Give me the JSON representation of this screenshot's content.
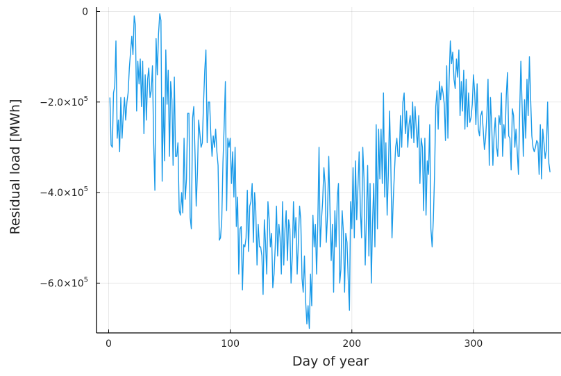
{
  "chart_data": {
    "type": "line",
    "xlabel": "Day of year",
    "ylabel": "Residual load [MWh]",
    "xlim": [
      -10,
      372
    ],
    "ylim": [
      -710000,
      10000
    ],
    "x_ticks": [
      0,
      100,
      200,
      300
    ],
    "x_tick_labels": [
      "0",
      "100",
      "200",
      "300"
    ],
    "y_ticks": [
      0,
      -200000,
      -400000,
      -600000
    ],
    "y_tick_labels": [
      {
        "base": "0",
        "exp": ""
      },
      {
        "base": "−2.0×10",
        "exp": "5"
      },
      {
        "base": "−4.0×10",
        "exp": "5"
      },
      {
        "base": "−6.0×10",
        "exp": "5"
      }
    ],
    "grid": true,
    "legend": "none",
    "series": [
      {
        "color": "#1a9ae8",
        "x_start": 1,
        "x_step": 1,
        "values": [
          -190000,
          -295000,
          -300000,
          -180000,
          -165000,
          -65000,
          -280000,
          -240000,
          -310000,
          -190000,
          -280000,
          -230000,
          -190000,
          -240000,
          -200000,
          -180000,
          -125000,
          -90000,
          -55000,
          -95000,
          -10000,
          -30000,
          -220000,
          -110000,
          -160000,
          -105000,
          -210000,
          -110000,
          -270000,
          -140000,
          -240000,
          -150000,
          -125000,
          -190000,
          -175000,
          -120000,
          -290000,
          -395000,
          -60000,
          -140000,
          -50000,
          -5000,
          -20000,
          -375000,
          -190000,
          -330000,
          -85000,
          -205000,
          -130000,
          -320000,
          -155000,
          -195000,
          -340000,
          -145000,
          -320000,
          -320000,
          -290000,
          -440000,
          -450000,
          -400000,
          -445000,
          -280000,
          -415000,
          -370000,
          -225000,
          -225000,
          -455000,
          -480000,
          -235000,
          -210000,
          -315000,
          -430000,
          -355000,
          -240000,
          -270000,
          -300000,
          -290000,
          -205000,
          -130000,
          -85000,
          -290000,
          -200000,
          -200000,
          -270000,
          -320000,
          -275000,
          -300000,
          -260000,
          -310000,
          -340000,
          -505000,
          -500000,
          -460000,
          -335000,
          -250000,
          -155000,
          -440000,
          -280000,
          -300000,
          -280000,
          -380000,
          -310000,
          -410000,
          -300000,
          -475000,
          -410000,
          -580000,
          -480000,
          -475000,
          -615000,
          -515000,
          -520000,
          -500000,
          -395000,
          -530000,
          -430000,
          -420000,
          -380000,
          -510000,
          -400000,
          -440000,
          -560000,
          -470000,
          -520000,
          -520000,
          -540000,
          -625000,
          -460000,
          -510000,
          -580000,
          -420000,
          -460000,
          -520000,
          -490000,
          -610000,
          -580000,
          -520000,
          -430000,
          -540000,
          -470000,
          -500000,
          -580000,
          -420000,
          -560000,
          -480000,
          -440000,
          -550000,
          -460000,
          -480000,
          -600000,
          -540000,
          -420000,
          -500000,
          -455000,
          -580000,
          -510000,
          -430000,
          -460000,
          -590000,
          -620000,
          -540000,
          -640000,
          -690000,
          -650000,
          -700000,
          -580000,
          -650000,
          -450000,
          -520000,
          -470000,
          -580000,
          -470000,
          -300000,
          -520000,
          -460000,
          -420000,
          -345000,
          -380000,
          -510000,
          -450000,
          -320000,
          -440000,
          -550000,
          -470000,
          -620000,
          -440000,
          -520000,
          -410000,
          -380000,
          -600000,
          -570000,
          -440000,
          -485000,
          -620000,
          -490000,
          -510000,
          -590000,
          -660000,
          -420000,
          -480000,
          -345000,
          -500000,
          -330000,
          -460000,
          -390000,
          -310000,
          -440000,
          -500000,
          -300000,
          -370000,
          -560000,
          -450000,
          -340000,
          -540000,
          -380000,
          -600000,
          -470000,
          -380000,
          -520000,
          -250000,
          -480000,
          -260000,
          -370000,
          -260000,
          -380000,
          -180000,
          -410000,
          -290000,
          -450000,
          -360000,
          -220000,
          -330000,
          -500000,
          -420000,
          -355000,
          -300000,
          -280000,
          -320000,
          -320000,
          -230000,
          -300000,
          -200000,
          -180000,
          -270000,
          -220000,
          -300000,
          -250000,
          -230000,
          -280000,
          -200000,
          -290000,
          -210000,
          -260000,
          -300000,
          -230000,
          -380000,
          -280000,
          -300000,
          -440000,
          -280000,
          -450000,
          -330000,
          -360000,
          -250000,
          -480000,
          -520000,
          -460000,
          -360000,
          -210000,
          -175000,
          -260000,
          -155000,
          -195000,
          -165000,
          -180000,
          -205000,
          -285000,
          -120000,
          -280000,
          -150000,
          -65000,
          -115000,
          -90000,
          -150000,
          -170000,
          -105000,
          -145000,
          -85000,
          -230000,
          -155000,
          -220000,
          -130000,
          -260000,
          -150000,
          -255000,
          -180000,
          -245000,
          -235000,
          -205000,
          -140000,
          -180000,
          -250000,
          -160000,
          -260000,
          -275000,
          -230000,
          -220000,
          -260000,
          -305000,
          -280000,
          -230000,
          -150000,
          -340000,
          -190000,
          -250000,
          -340000,
          -270000,
          -235000,
          -300000,
          -320000,
          -230000,
          -250000,
          -180000,
          -320000,
          -250000,
          -280000,
          -185000,
          -135000,
          -275000,
          -280000,
          -350000,
          -215000,
          -230000,
          -300000,
          -260000,
          -310000,
          -360000,
          -220000,
          -110000,
          -210000,
          -320000,
          -195000,
          -280000,
          -150000,
          -230000,
          -100000,
          -190000,
          -275000,
          -300000,
          -310000,
          -300000,
          -285000,
          -290000,
          -360000,
          -250000,
          -370000,
          -260000,
          -290000,
          -325000,
          -305000,
          -200000,
          -335000,
          -355000
        ]
      }
    ]
  }
}
